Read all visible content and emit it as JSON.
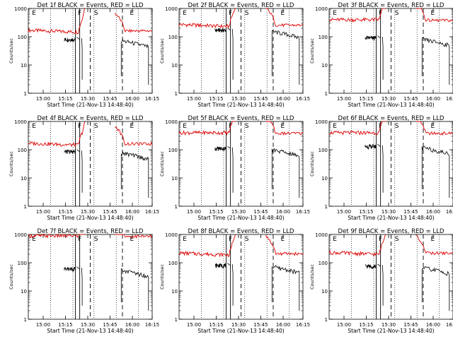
{
  "figure": {
    "start_time_label": "Start Time (21-Nov-13 14:48:40)",
    "ylabel": "Counts/sec",
    "x_ticks": [
      "15:00",
      "15:15",
      "15:30",
      "15:45",
      "16:00",
      "16:15"
    ],
    "y_ticks": [
      "1",
      "10",
      "100",
      "1000"
    ],
    "markers": [
      "E",
      "F",
      "S",
      "E"
    ],
    "colors": {
      "events": "#000000",
      "lld": "#dd0000"
    }
  },
  "chart_data": [
    {
      "type": "line",
      "title": "Det 1f BLACK = Events, RED = LLD",
      "xlabel": "Start Time (21-Nov-13 14:48:40)",
      "ylabel": "Counts/sec",
      "ylim": [
        1,
        1000
      ],
      "yscale": "log",
      "series": [
        {
          "name": "Events",
          "color": "#000000",
          "level": 80
        },
        {
          "name": "LLD",
          "color": "#dd0000",
          "level": 170
        }
      ]
    },
    {
      "type": "line",
      "title": "Det 2f BLACK = Events, RED = LLD",
      "xlabel": "Start Time (21-Nov-13 14:48:40)",
      "ylabel": "Counts/sec",
      "ylim": [
        1,
        1000
      ],
      "yscale": "log",
      "series": [
        {
          "name": "Events",
          "color": "#000000",
          "level": 170
        },
        {
          "name": "LLD",
          "color": "#dd0000",
          "level": 270
        }
      ]
    },
    {
      "type": "line",
      "title": "Det 3f BLACK = Events, RED = LLD",
      "xlabel": "Start Time (21-Nov-13 14:48:40)",
      "ylabel": "Counts/sec",
      "ylim": [
        1,
        1000
      ],
      "yscale": "log",
      "series": [
        {
          "name": "Events",
          "color": "#000000",
          "level": 90
        },
        {
          "name": "LLD",
          "color": "#dd0000",
          "level": 400
        }
      ]
    },
    {
      "type": "line",
      "title": "Det 4f BLACK = Events, RED = LLD",
      "xlabel": "Start Time (21-Nov-13 14:48:40)",
      "ylabel": "Counts/sec",
      "ylim": [
        1,
        1000
      ],
      "yscale": "log",
      "series": [
        {
          "name": "Events",
          "color": "#000000",
          "level": 85
        },
        {
          "name": "LLD",
          "color": "#dd0000",
          "level": 170
        }
      ]
    },
    {
      "type": "line",
      "title": "Det 5f BLACK = Events, RED = LLD",
      "xlabel": "Start Time (21-Nov-13 14:48:40)",
      "ylabel": "Counts/sec",
      "ylim": [
        1,
        1000
      ],
      "yscale": "log",
      "series": [
        {
          "name": "Events",
          "color": "#000000",
          "level": 110
        },
        {
          "name": "LLD",
          "color": "#dd0000",
          "level": 400
        }
      ]
    },
    {
      "type": "line",
      "title": "Det 6f BLACK = Events, RED = LLD",
      "xlabel": "Start Time (21-Nov-13 14:48:40)",
      "ylabel": "Counts/sec",
      "ylim": [
        1,
        1000
      ],
      "yscale": "log",
      "series": [
        {
          "name": "Events",
          "color": "#000000",
          "level": 130
        },
        {
          "name": "LLD",
          "color": "#dd0000",
          "level": 400
        }
      ]
    },
    {
      "type": "line",
      "title": "Det 7f BLACK = Events, RED = LLD",
      "xlabel": "Start Time (21-Nov-13 14:48:40)",
      "ylabel": "Counts/sec",
      "ylim": [
        1,
        1000
      ],
      "yscale": "log",
      "series": [
        {
          "name": "Events",
          "color": "#000000",
          "level": 60
        },
        {
          "name": "LLD",
          "color": "#dd0000",
          "level": 900
        }
      ]
    },
    {
      "type": "line",
      "title": "Det 8f BLACK = Events, RED = LLD",
      "xlabel": "Start Time (21-Nov-13 14:48:40)",
      "ylabel": "Counts/sec",
      "ylim": [
        1,
        1000
      ],
      "yscale": "log",
      "series": [
        {
          "name": "Events",
          "color": "#000000",
          "level": 80
        },
        {
          "name": "LLD",
          "color": "#dd0000",
          "level": 220
        }
      ]
    },
    {
      "type": "line",
      "title": "Det 9f BLACK = Events, RED = LLD",
      "xlabel": "Start Time (21-Nov-13 14:48:40)",
      "ylabel": "Counts/sec",
      "ylim": [
        1,
        1000
      ],
      "yscale": "log",
      "series": [
        {
          "name": "Events",
          "color": "#000000",
          "level": 75
        },
        {
          "name": "LLD",
          "color": "#dd0000",
          "level": 230
        }
      ]
    }
  ]
}
